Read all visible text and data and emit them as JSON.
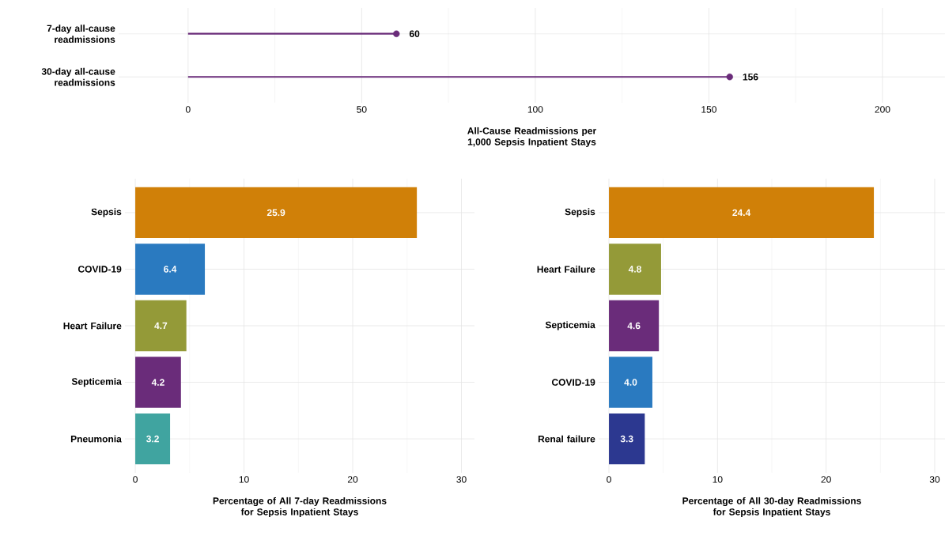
{
  "chart_data": [
    {
      "type": "lollipop",
      "orientation": "horizontal",
      "categories": [
        "7-day all-cause readmissions",
        "30-day all-cause readmissions"
      ],
      "values": [
        60,
        156
      ],
      "color": "#6a2c7a",
      "marker": "circle",
      "data_labels": true,
      "grid": true,
      "xlim": [
        -20,
        218
      ],
      "xticks": [
        0,
        50,
        100,
        150,
        200
      ],
      "xlabel": "All-Cause Readmissions per 1,000 Sepsis Inpatient Stays"
    },
    {
      "type": "bar",
      "orientation": "horizontal",
      "categories": [
        "Sepsis",
        "COVID-19",
        "Heart Failure",
        "Septicemia",
        "Pneumonia"
      ],
      "values": [
        25.9,
        6.4,
        4.7,
        4.2,
        3.2
      ],
      "colors": [
        "#d08008",
        "#2a7ac0",
        "#949a38",
        "#6a2c7a",
        "#40a4a0"
      ],
      "data_labels": true,
      "grid": true,
      "xlim": [
        -0.95,
        31.2
      ],
      "xticks": [
        0,
        10,
        20,
        30
      ],
      "xlabel": "Percentage of All 7-day Readmissions for Sepsis Inpatient Stays"
    },
    {
      "type": "bar",
      "orientation": "horizontal",
      "categories": [
        "Sepsis",
        "Heart Failure",
        "Septicemia",
        "COVID-19",
        "Renal failure"
      ],
      "values": [
        24.4,
        4.8,
        4.6,
        4.0,
        3.3
      ],
      "colors": [
        "#d08008",
        "#949a38",
        "#6a2c7a",
        "#2a7ac0",
        "#2c3890"
      ],
      "value_labels": [
        "24.4",
        "4.8",
        "4.6",
        "4.0",
        "3.3"
      ],
      "grid": true,
      "xlim": [
        -0.95,
        30.95
      ],
      "xticks": [
        0,
        10,
        20,
        30
      ],
      "xlabel": "Percentage of All 30-day Readmissions for Sepsis Inpatient Stays"
    }
  ]
}
